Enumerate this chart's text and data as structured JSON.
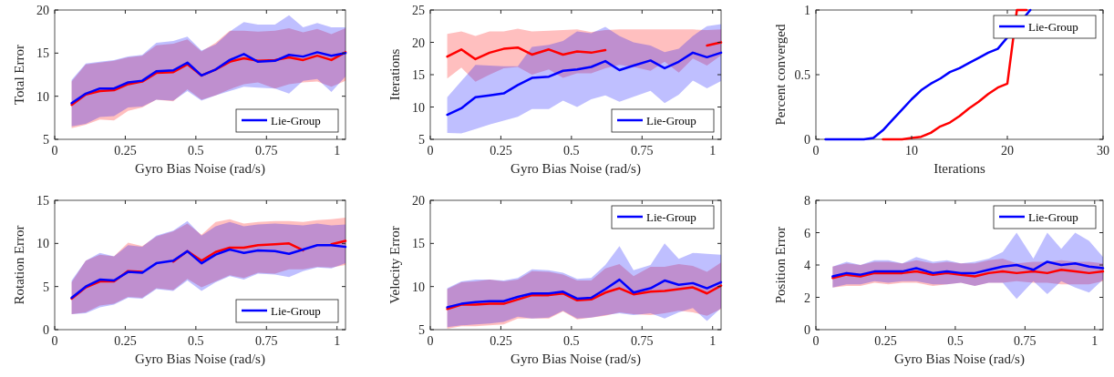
{
  "chart_data": [
    {
      "type": "line",
      "xlabel": "Gyro Bias Noise (rad/s)",
      "ylabel": "Total Error",
      "legend": "bottom right",
      "x": [
        0.06,
        0.11,
        0.16,
        0.21,
        0.26,
        0.31,
        0.36,
        0.42,
        0.47,
        0.52,
        0.57,
        0.62,
        0.67,
        0.72,
        0.78,
        0.83,
        0.88,
        0.93,
        0.98,
        1.03
      ],
      "xlim": [
        0,
        1.03
      ],
      "xticks": [
        0,
        0.25,
        0.5,
        0.75,
        1
      ],
      "ylim": [
        5,
        20
      ],
      "yticks": [
        5,
        10,
        15,
        20
      ],
      "series": [
        {
          "color": "#ff0000",
          "values": [
            9.0,
            10.2,
            10.6,
            10.7,
            11.4,
            11.7,
            12.7,
            12.8,
            13.7,
            12.4,
            13.1,
            14.0,
            14.4,
            14.1,
            14.2,
            14.5,
            14.2,
            14.7,
            14.2,
            15.1
          ],
          "lower": [
            6.3,
            6.7,
            7.3,
            7.2,
            8.3,
            8.7,
            9.6,
            9.4,
            10.8,
            9.6,
            10.1,
            10.8,
            11.4,
            11.6,
            10.9,
            11.4,
            11.6,
            11.7,
            11.1,
            11.8
          ],
          "upper": [
            11.7,
            13.7,
            13.9,
            14.1,
            14.5,
            14.7,
            15.9,
            16.1,
            16.6,
            15.2,
            16.2,
            17.6,
            17.6,
            17.5,
            17.6,
            17.9,
            17.4,
            17.8,
            17.2,
            17.9
          ]
        },
        {
          "name": "Lie-Group",
          "color": "#0000ff",
          "values": [
            9.2,
            10.3,
            10.9,
            10.9,
            11.6,
            11.8,
            12.9,
            13.0,
            13.9,
            12.4,
            13.1,
            14.2,
            14.9,
            14.0,
            14.1,
            14.8,
            14.6,
            15.1,
            14.7,
            15.0
          ],
          "lower": [
            6.5,
            6.8,
            7.6,
            7.7,
            8.7,
            8.8,
            9.6,
            9.5,
            10.6,
            9.5,
            10.1,
            10.6,
            11.1,
            11.0,
            10.9,
            10.3,
            11.8,
            12.0,
            10.5,
            12.3
          ],
          "upper": [
            11.9,
            13.8,
            14.0,
            14.2,
            14.6,
            14.8,
            16.2,
            16.4,
            16.9,
            15.3,
            16.0,
            17.5,
            18.6,
            18.3,
            18.3,
            19.4,
            18.0,
            18.5,
            18.0,
            18.0
          ]
        }
      ]
    },
    {
      "type": "line",
      "xlabel": "Gyro Bias Noise (rad/s)",
      "ylabel": "Iterations",
      "legend": "bottom right",
      "x": [
        0.06,
        0.11,
        0.16,
        0.21,
        0.26,
        0.31,
        0.36,
        0.42,
        0.47,
        0.52,
        0.57,
        0.62,
        0.67,
        0.72,
        0.78,
        0.83,
        0.88,
        0.93,
        0.98,
        1.03
      ],
      "xlim": [
        0,
        1.03
      ],
      "xticks": [
        0,
        0.25,
        0.5,
        0.75,
        1
      ],
      "ylim": [
        5,
        25
      ],
      "yticks": [
        5,
        10,
        15,
        20,
        25
      ],
      "series": [
        {
          "color": "#ff0000",
          "values": [
            17.8,
            18.9,
            17.4,
            18.4,
            19.0,
            19.2,
            18.1,
            18.9,
            18.1,
            18.6,
            18.4,
            18.8,
            null,
            null,
            null,
            null,
            null,
            null,
            19.5,
            20.0
          ],
          "lower": [
            14.4,
            16.1,
            13.9,
            15.0,
            16.0,
            16.2,
            15.0,
            15.8,
            14.5,
            15.2,
            15.2,
            16.0,
            16.5,
            16.2,
            15.6,
            17.0,
            15.3,
            17.5,
            16.4,
            18.0
          ],
          "upper": [
            21.3,
            21.7,
            21.0,
            21.7,
            21.7,
            22.1,
            21.7,
            21.8,
            21.9,
            22.0,
            21.6,
            21.9,
            22.0,
            22.0,
            22.0,
            22.0,
            22.0,
            22.0,
            21.9,
            22.0
          ]
        },
        {
          "name": "Lie-Group",
          "color": "#0000ff",
          "values": [
            8.8,
            9.8,
            11.5,
            11.8,
            12.1,
            13.4,
            14.5,
            14.7,
            15.6,
            15.8,
            16.2,
            17.1,
            15.7,
            16.4,
            17.2,
            16.0,
            17.0,
            18.4,
            17.7,
            18.4
          ],
          "lower": [
            6.0,
            5.9,
            6.6,
            7.3,
            7.9,
            8.5,
            9.7,
            9.7,
            11.0,
            10.0,
            11.2,
            11.8,
            10.8,
            11.6,
            12.5,
            10.6,
            11.9,
            14.1,
            12.9,
            14.0
          ],
          "upper": [
            11.5,
            14.0,
            16.5,
            16.4,
            16.3,
            16.3,
            19.3,
            19.6,
            20.2,
            21.7,
            21.4,
            22.4,
            21.0,
            20.0,
            19.5,
            18.5,
            19.0,
            21.0,
            22.5,
            22.8
          ]
        }
      ]
    },
    {
      "type": "line",
      "xlabel": "Iterations",
      "ylabel": "Percent converged",
      "legend": "top right",
      "xlim": [
        0,
        30
      ],
      "xticks": [
        0,
        10,
        20,
        30
      ],
      "ylim": [
        0,
        1
      ],
      "yticks": [
        0,
        0.5,
        1
      ],
      "series": [
        {
          "color": "#ff0000",
          "x": [
            7,
            8,
            9,
            10,
            11,
            12,
            13,
            14,
            15,
            16,
            17,
            18,
            19,
            20,
            21,
            22
          ],
          "values": [
            0,
            0,
            0,
            0.01,
            0.02,
            0.05,
            0.1,
            0.13,
            0.18,
            0.24,
            0.29,
            0.35,
            0.4,
            0.43,
            1,
            1
          ]
        },
        {
          "name": "Lie-Group",
          "color": "#0000ff",
          "x": [
            1,
            2,
            3,
            4,
            5,
            6,
            7,
            8,
            9,
            10,
            11,
            12,
            13,
            14,
            15,
            16,
            17,
            18,
            19,
            22.4
          ],
          "values": [
            0,
            0,
            0,
            0,
            0,
            0.01,
            0.07,
            0.15,
            0.23,
            0.31,
            0.38,
            0.43,
            0.47,
            0.52,
            0.55,
            0.59,
            0.63,
            0.67,
            0.7,
            1
          ]
        }
      ]
    },
    {
      "type": "line",
      "xlabel": "Gyro Bias Noise (rad/s)",
      "ylabel": "Rotation Error",
      "legend": "bottom right",
      "x": [
        0.06,
        0.11,
        0.16,
        0.21,
        0.26,
        0.31,
        0.36,
        0.42,
        0.47,
        0.52,
        0.57,
        0.62,
        0.67,
        0.72,
        0.78,
        0.83,
        0.88,
        0.93,
        0.98,
        1.03
      ],
      "xlim": [
        0,
        1.03
      ],
      "xticks": [
        0,
        0.25,
        0.5,
        0.75,
        1
      ],
      "ylim": [
        0,
        15
      ],
      "yticks": [
        0,
        5,
        10,
        15
      ],
      "series": [
        {
          "color": "#ff0000",
          "values": [
            3.6,
            4.9,
            5.6,
            5.6,
            6.8,
            6.7,
            null,
            7.9,
            9.1,
            8.0,
            9.0,
            9.5,
            9.5,
            9.8,
            9.9,
            10.0,
            9.2,
            null,
            9.9,
            10.3
          ],
          "lower": [
            1.8,
            2.0,
            2.8,
            3.0,
            3.8,
            3.7,
            4.8,
            4.6,
            5.9,
            4.9,
            5.6,
            6.3,
            6.0,
            6.6,
            6.5,
            7.0,
            7.0,
            7.3,
            7.2,
            7.5
          ],
          "upper": [
            5.5,
            8.0,
            8.7,
            8.5,
            10.1,
            9.7,
            10.8,
            11.4,
            12.3,
            11.0,
            12.5,
            12.8,
            12.3,
            12.5,
            12.6,
            12.6,
            12.5,
            12.7,
            12.8,
            13.0
          ]
        },
        {
          "name": "Lie-Group",
          "color": "#0000ff",
          "values": [
            3.7,
            5.0,
            5.8,
            5.7,
            6.7,
            6.6,
            7.7,
            8.0,
            9.1,
            7.7,
            8.7,
            9.3,
            8.9,
            9.2,
            9.1,
            8.8,
            9.3,
            9.8,
            9.8,
            9.6
          ],
          "lower": [
            1.8,
            1.9,
            2.6,
            2.9,
            3.7,
            3.6,
            4.7,
            4.5,
            5.7,
            4.5,
            5.5,
            6.2,
            5.8,
            6.5,
            6.4,
            6.1,
            6.8,
            7.2,
            7.1,
            7.7
          ],
          "upper": [
            5.7,
            8.0,
            8.9,
            8.5,
            9.8,
            9.6,
            10.9,
            11.5,
            12.6,
            10.9,
            12.0,
            12.5,
            12.0,
            12.2,
            12.3,
            12.2,
            12.1,
            12.3,
            12.1,
            12.2
          ]
        }
      ]
    },
    {
      "type": "line",
      "xlabel": "Gyro Bias Noise (rad/s)",
      "ylabel": "Velocity Error",
      "legend": "top right",
      "x": [
        0.06,
        0.11,
        0.16,
        0.21,
        0.26,
        0.31,
        0.36,
        0.42,
        0.47,
        0.52,
        0.57,
        0.62,
        0.67,
        0.72,
        0.78,
        0.83,
        0.88,
        0.93,
        0.98,
        1.03
      ],
      "xlim": [
        0,
        1.03
      ],
      "xticks": [
        0,
        0.25,
        0.5,
        0.75,
        1
      ],
      "ylim": [
        5,
        20
      ],
      "yticks": [
        5,
        10,
        15,
        20
      ],
      "series": [
        {
          "color": "#ff0000",
          "values": [
            7.4,
            7.9,
            7.9,
            8.0,
            8.0,
            8.5,
            9.0,
            9.0,
            9.2,
            8.4,
            8.5,
            9.3,
            9.8,
            9.1,
            9.4,
            9.5,
            9.7,
            9.9,
            9.2,
            10.1
          ],
          "lower": [
            5.1,
            5.4,
            5.4,
            5.5,
            5.6,
            6.3,
            6.3,
            6.3,
            7.1,
            6.2,
            6.4,
            6.6,
            7.0,
            6.8,
            6.7,
            6.9,
            7.2,
            7.0,
            6.6,
            7.4
          ],
          "upper": [
            9.7,
            10.5,
            10.6,
            10.8,
            10.6,
            10.8,
            11.8,
            11.7,
            11.4,
            10.7,
            10.7,
            12.1,
            12.6,
            11.2,
            12.3,
            12.3,
            12.6,
            12.4,
            11.7,
            12.8
          ]
        },
        {
          "name": "Lie-Group",
          "color": "#0000ff",
          "values": [
            7.6,
            8.0,
            8.2,
            8.3,
            8.3,
            8.8,
            9.2,
            9.2,
            9.4,
            8.6,
            8.7,
            9.7,
            10.8,
            9.3,
            9.8,
            10.7,
            10.2,
            10.4,
            9.8,
            10.5
          ],
          "lower": [
            5.3,
            5.5,
            5.6,
            5.7,
            5.9,
            6.5,
            6.3,
            6.4,
            7.2,
            6.3,
            6.4,
            6.7,
            6.9,
            6.7,
            6.9,
            6.3,
            7.0,
            7.5,
            6.0,
            7.5
          ],
          "upper": [
            9.8,
            10.6,
            10.8,
            10.8,
            10.7,
            11.0,
            12.0,
            11.9,
            11.6,
            10.9,
            11.0,
            12.5,
            14.7,
            11.9,
            12.5,
            15.0,
            13.2,
            13.9,
            13.8,
            13.7
          ]
        }
      ]
    },
    {
      "type": "line",
      "xlabel": "Gyro Bias Noise (rad/s)",
      "ylabel": "Position Error",
      "legend": "top right",
      "x": [
        0.06,
        0.11,
        0.16,
        0.21,
        0.26,
        0.31,
        0.36,
        0.42,
        0.47,
        0.52,
        0.57,
        0.62,
        0.67,
        0.72,
        0.78,
        0.83,
        0.88,
        0.93,
        0.98,
        1.03
      ],
      "xlim": [
        0,
        1.03
      ],
      "xticks": [
        0,
        0.25,
        0.5,
        0.75,
        1
      ],
      "ylim": [
        0,
        8
      ],
      "yticks": [
        0,
        2,
        4,
        6,
        8
      ],
      "series": [
        {
          "color": "#ff0000",
          "values": [
            3.2,
            3.4,
            3.3,
            3.5,
            3.5,
            3.5,
            3.6,
            3.4,
            3.5,
            3.4,
            3.3,
            3.5,
            3.6,
            3.5,
            3.6,
            3.5,
            3.7,
            3.6,
            3.5,
            3.6
          ],
          "lower": [
            2.6,
            2.7,
            2.7,
            2.9,
            2.8,
            2.9,
            2.9,
            2.7,
            2.8,
            2.9,
            2.7,
            2.9,
            2.9,
            3.0,
            2.9,
            2.9,
            2.8,
            2.8,
            2.8,
            3.0
          ],
          "upper": [
            3.9,
            4.1,
            4.0,
            4.2,
            4.2,
            4.1,
            4.3,
            4.1,
            4.2,
            4.1,
            4.1,
            4.3,
            4.4,
            4.1,
            4.2,
            4.2,
            4.3,
            4.2,
            4.2,
            4.1
          ]
        },
        {
          "name": "Lie-Group",
          "color": "#0000ff",
          "values": [
            3.3,
            3.5,
            3.4,
            3.6,
            3.6,
            3.6,
            3.8,
            3.5,
            3.6,
            3.5,
            3.5,
            3.7,
            3.9,
            4.0,
            3.7,
            4.2,
            4.0,
            4.1,
            3.9,
            3.8
          ],
          "lower": [
            2.6,
            2.8,
            2.8,
            3.0,
            2.9,
            3.0,
            3.0,
            2.8,
            2.8,
            2.9,
            2.7,
            2.9,
            2.9,
            1.9,
            3.0,
            2.2,
            3.0,
            2.6,
            2.3,
            3.1
          ],
          "upper": [
            3.9,
            4.2,
            4.0,
            4.3,
            4.3,
            4.1,
            4.5,
            4.2,
            4.3,
            4.1,
            4.2,
            4.4,
            4.8,
            6.0,
            4.4,
            6.0,
            5.0,
            6.0,
            5.5,
            4.5
          ]
        }
      ]
    }
  ]
}
